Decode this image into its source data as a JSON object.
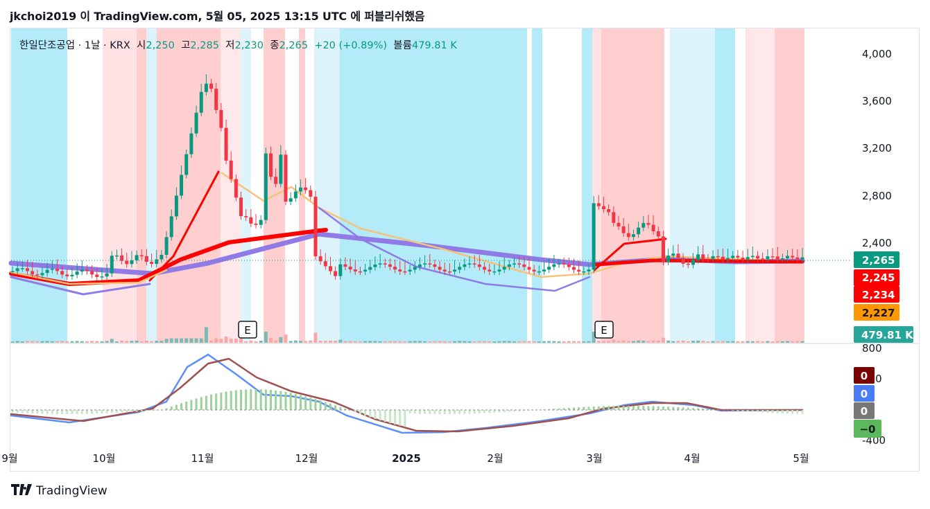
{
  "header": {
    "text": "jkchoi2019 이 TradingView.com, 5월 05, 2025 13:15 UTC 에 퍼블리쉬했음"
  },
  "legend": {
    "symbol": "한일단조공업 · 1날 · KRX",
    "open_label": "시",
    "open": "2,250",
    "high_label": "고",
    "high": "2,285",
    "low_label": "저",
    "low": "2,230",
    "close_label": "종",
    "close": "2,265",
    "change": "+20 (+0.89%)",
    "volume_label": "볼륨",
    "volume": "479.81 K"
  },
  "footer": {
    "brand": "TradingView",
    "logo_icon": "tv-logo-icon"
  },
  "colors": {
    "up": "#089981",
    "down": "#f23645",
    "volume_up": "#7bbab3",
    "volume_down": "#f7a9a7",
    "macd_line": "#5b8ff9",
    "signal_line": "#a0504e",
    "hist_up": "#9ad29a",
    "hist_down": "#c7e6c7"
  },
  "chart_data": {
    "type": "candlestick",
    "price_axis_ticks": [
      "4,000",
      "3,600",
      "3,200",
      "2,800",
      "2,400"
    ],
    "price_labels": [
      {
        "value": "2,265",
        "color": "#089981"
      },
      {
        "value": "2,245",
        "color": "#ff0000"
      },
      {
        "value": "2,234",
        "color": "#ff0000"
      },
      {
        "value": "2,227",
        "color": "#ff9800"
      }
    ],
    "volume_label": {
      "value": "479.81 K",
      "color": "#26a69a"
    },
    "time_axis_ticks": [
      "9월",
      "10월",
      "11월",
      "12월",
      "2025",
      "2월",
      "3월",
      "4월",
      "5월"
    ],
    "events": [
      "E",
      "E"
    ],
    "candles_approx": [
      {
        "date": "2024-09",
        "close": 2150
      },
      {
        "date": "2024-10",
        "close": 2200
      },
      {
        "date": "2024-10-20",
        "close": 3700
      },
      {
        "date": "2024-11",
        "close": 3500
      },
      {
        "date": "2024-11-10",
        "close": 2600
      },
      {
        "date": "2024-11-20",
        "close": 3000
      },
      {
        "date": "2024-12",
        "close": 2800
      },
      {
        "date": "2024-12-10",
        "close": 2300
      },
      {
        "date": "2025-01",
        "close": 2200
      },
      {
        "date": "2025-02",
        "close": 2150
      },
      {
        "date": "2025-03",
        "close": 2600
      },
      {
        "date": "2025-03-20",
        "close": 2450
      },
      {
        "date": "2025-04",
        "close": 2250
      },
      {
        "date": "2025-05",
        "close": 2265
      }
    ],
    "indicator": {
      "type": "macd",
      "axis_ticks": [
        "800",
        "400",
        "0",
        "-400"
      ],
      "labels": [
        {
          "value": "0",
          "color": "#7b0000"
        },
        {
          "value": "0",
          "color": "#4a7df5"
        },
        {
          "value": "0",
          "color": "#777777"
        },
        {
          "value": "−0",
          "color": "#5cb85c"
        }
      ]
    }
  }
}
